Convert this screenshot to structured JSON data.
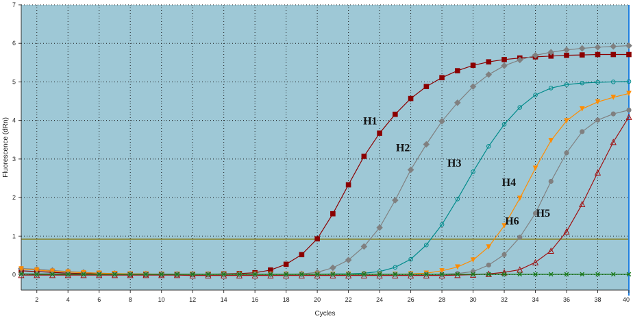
{
  "colors": {
    "plot_bg": "#9ec8d6",
    "grid": "#1a1a1a",
    "threshold": "#8a8a3a",
    "right_axis": "#1e7fe0"
  },
  "chart_data": {
    "type": "line",
    "title": "",
    "xlabel": "Cycles",
    "ylabel": "Fluorescence (dRn)",
    "xlim": [
      1,
      40
    ],
    "ylim": [
      -0.4,
      7
    ],
    "x_ticks": [
      2,
      4,
      6,
      8,
      10,
      12,
      14,
      16,
      18,
      20,
      22,
      24,
      26,
      28,
      30,
      32,
      34,
      36,
      38,
      40
    ],
    "y_ticks": [
      0,
      1,
      2,
      3,
      4,
      5,
      6,
      7
    ],
    "grid": true,
    "legend": "none",
    "threshold": 0.92,
    "x": [
      1,
      2,
      3,
      4,
      5,
      6,
      7,
      8,
      9,
      10,
      11,
      12,
      13,
      14,
      15,
      16,
      17,
      18,
      19,
      20,
      21,
      22,
      23,
      24,
      25,
      26,
      27,
      28,
      29,
      30,
      31,
      32,
      33,
      34,
      35,
      36,
      37,
      38,
      39,
      40
    ],
    "series": [
      {
        "name": "H1",
        "color": "#8b0000",
        "marker": "square",
        "values": [
          0.1,
          0.08,
          0.06,
          0.04,
          0.03,
          0.02,
          0.02,
          0.01,
          0.01,
          0.01,
          0.01,
          0.01,
          0.01,
          0.02,
          0.03,
          0.05,
          0.12,
          0.27,
          0.52,
          0.93,
          1.58,
          2.33,
          3.07,
          3.67,
          4.16,
          4.57,
          4.88,
          5.11,
          5.29,
          5.43,
          5.52,
          5.58,
          5.62,
          5.65,
          5.67,
          5.69,
          5.7,
          5.71,
          5.71,
          5.71
        ]
      },
      {
        "name": "H2",
        "color": "#808080",
        "marker": "diamond",
        "values": [
          0.16,
          0.14,
          0.11,
          0.08,
          0.06,
          0.04,
          0.03,
          0.02,
          0.02,
          0.01,
          0.01,
          0.01,
          0.01,
          0.01,
          0.01,
          0.01,
          0.01,
          0.01,
          0.02,
          0.06,
          0.18,
          0.38,
          0.73,
          1.22,
          1.93,
          2.72,
          3.38,
          3.98,
          4.46,
          4.88,
          5.19,
          5.42,
          5.57,
          5.69,
          5.77,
          5.83,
          5.87,
          5.9,
          5.92,
          5.94
        ]
      },
      {
        "name": "H3",
        "color": "#008b8b",
        "marker": "circle-open",
        "values": [
          0.02,
          0.02,
          0.02,
          0.02,
          0.01,
          0.01,
          0.01,
          0.01,
          0.01,
          0.01,
          0.01,
          0.01,
          0.01,
          0.01,
          0.01,
          0.01,
          0.01,
          0.01,
          0.01,
          0.01,
          0.02,
          0.02,
          0.04,
          0.08,
          0.19,
          0.4,
          0.77,
          1.3,
          1.96,
          2.67,
          3.33,
          3.9,
          4.34,
          4.66,
          4.84,
          4.93,
          4.97,
          4.99,
          5.0,
          5.01
        ]
      },
      {
        "name": "H4",
        "color": "#ff8c00",
        "marker": "triangle-down",
        "values": [
          0.15,
          0.12,
          0.09,
          0.07,
          0.05,
          0.04,
          0.03,
          0.02,
          0.02,
          0.01,
          0.01,
          0.01,
          0.01,
          0.01,
          0.01,
          0.01,
          0.01,
          0.01,
          0.01,
          0.01,
          0.01,
          0.01,
          0.01,
          0.01,
          0.01,
          0.02,
          0.04,
          0.1,
          0.2,
          0.38,
          0.72,
          1.27,
          1.98,
          2.76,
          3.48,
          3.99,
          4.3,
          4.48,
          4.6,
          4.7
        ]
      },
      {
        "name": "H5",
        "color": "#a01010",
        "marker": "triangle-open",
        "values": [
          -0.01,
          -0.01,
          -0.01,
          -0.01,
          -0.01,
          -0.01,
          -0.01,
          -0.01,
          -0.01,
          -0.01,
          -0.01,
          -0.02,
          -0.02,
          -0.02,
          -0.02,
          -0.02,
          -0.02,
          -0.02,
          -0.02,
          -0.02,
          -0.02,
          -0.02,
          -0.02,
          -0.02,
          -0.02,
          -0.02,
          -0.02,
          -0.02,
          -0.01,
          0.0,
          0.02,
          0.06,
          0.13,
          0.32,
          0.62,
          1.12,
          1.83,
          2.65,
          3.44,
          4.09
        ]
      },
      {
        "name": "H6",
        "color": "#808080",
        "marker": "circle",
        "values": [
          0.02,
          0.02,
          0.02,
          0.02,
          0.01,
          0.01,
          0.01,
          0.01,
          0.01,
          0.01,
          0.01,
          0.01,
          0.01,
          0.01,
          0.01,
          0.01,
          0.01,
          0.01,
          0.01,
          0.01,
          0.01,
          0.01,
          0.01,
          0.01,
          0.01,
          0.01,
          0.01,
          0.01,
          0.03,
          0.08,
          0.25,
          0.52,
          0.97,
          1.59,
          2.42,
          3.16,
          3.71,
          4.01,
          4.17,
          4.27
        ]
      },
      {
        "name": "",
        "color": "#1a7a1a",
        "marker": "x",
        "values": [
          0.02,
          0.01,
          0.01,
          0.01,
          0.01,
          0.01,
          0.01,
          0.01,
          0.01,
          0.01,
          0.01,
          0.01,
          0.01,
          0.01,
          0.01,
          0.01,
          0.01,
          0.01,
          0.01,
          0.01,
          0.01,
          0.01,
          0.01,
          0.01,
          0.01,
          0.01,
          0.01,
          0.01,
          0.01,
          0.01,
          0.01,
          0.01,
          0.01,
          0.01,
          0.01,
          0.01,
          0.01,
          0.01,
          0.01,
          0.01
        ]
      }
    ],
    "annotations": [
      {
        "text": "H1",
        "x": 23.4,
        "y": 3.9
      },
      {
        "text": "H2",
        "x": 25.5,
        "y": 3.2
      },
      {
        "text": "H3",
        "x": 28.8,
        "y": 2.8
      },
      {
        "text": "H4",
        "x": 32.3,
        "y": 2.3
      },
      {
        "text": "H6",
        "x": 32.5,
        "y": 1.3
      },
      {
        "text": "H5",
        "x": 34.5,
        "y": 1.5
      }
    ]
  }
}
